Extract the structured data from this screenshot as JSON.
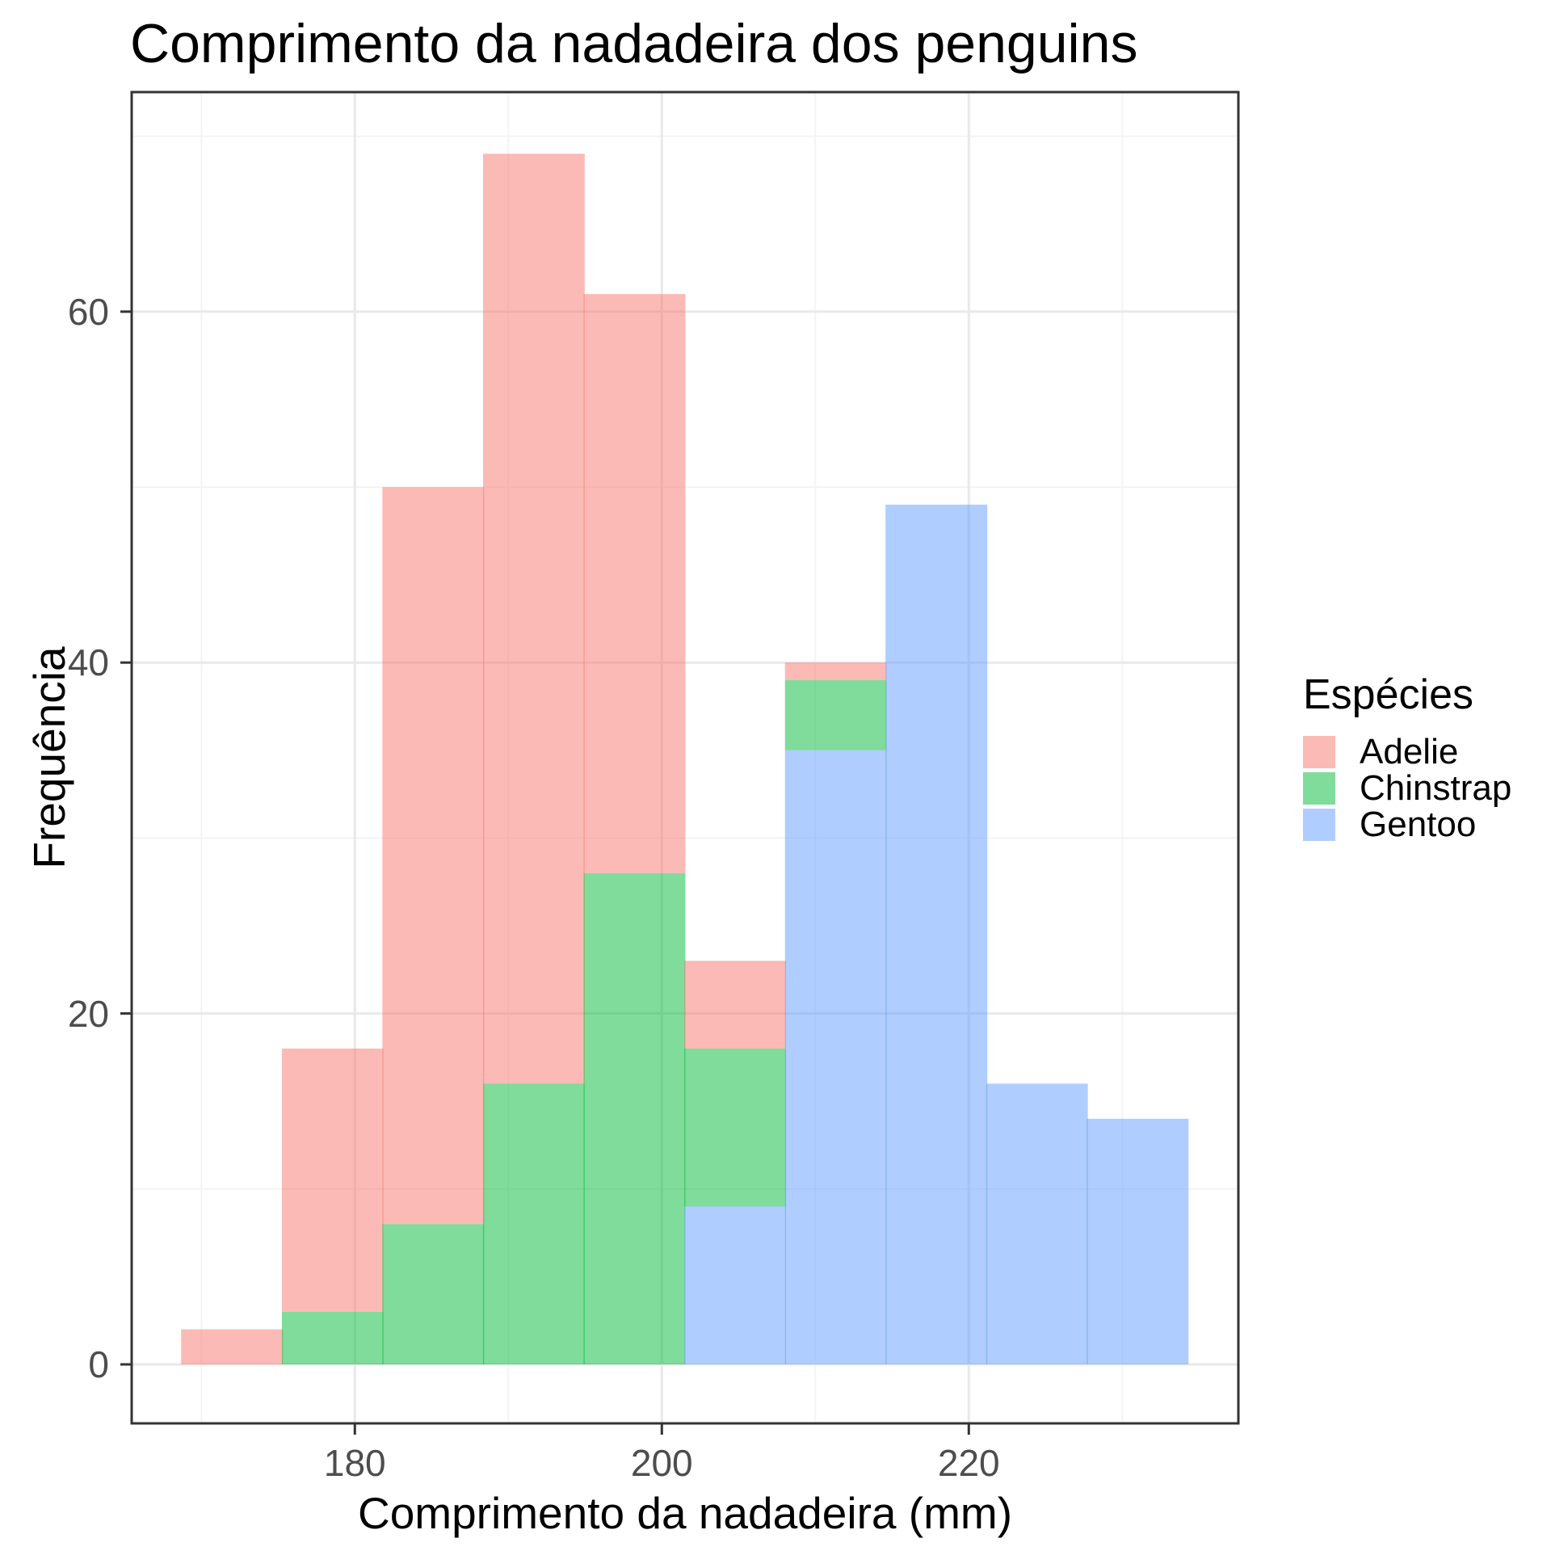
{
  "title": "Comprimento da nadadeira dos penguins",
  "x_axis": {
    "label": "Comprimento da nadadeira (mm)",
    "tick_labels": [
      "180",
      "200",
      "220"
    ],
    "tick_values_mm": [
      180,
      200,
      220
    ],
    "minor_gridlines_mm": [
      170,
      190,
      210,
      230
    ]
  },
  "y_axis": {
    "label": "Frequência",
    "tick_labels": [
      "0",
      "20",
      "40",
      "60"
    ],
    "tick_values": [
      0,
      20,
      40,
      60
    ],
    "minor_gridlines": [
      10,
      30,
      50,
      70
    ]
  },
  "legend": {
    "title": "Espécies",
    "fill_alpha": 0.5,
    "items": [
      {
        "label": "Adelie",
        "color": "#F8766D"
      },
      {
        "label": "Chinstrap",
        "color": "#00BA38"
      },
      {
        "label": "Gentoo",
        "color": "#619CFF"
      }
    ]
  },
  "chart_data": {
    "type": "bar",
    "subtype": "stacked-histogram",
    "title": "Comprimento da nadadeira dos penguins",
    "xlabel": "Comprimento da nadadeira (mm)",
    "ylabel": "Frequência",
    "bin_edges_mm": [
      168.72,
      175.28,
      181.83,
      188.39,
      194.94,
      201.5,
      208.06,
      214.61,
      221.17,
      227.72,
      234.28
    ],
    "series": [
      {
        "name": "Adelie",
        "color": "#F8766D",
        "values": [
          2,
          15,
          42,
          53,
          33,
          5,
          1,
          0,
          0,
          0
        ]
      },
      {
        "name": "Chinstrap",
        "color": "#00BA38",
        "values": [
          0,
          3,
          8,
          16,
          28,
          9,
          4,
          0,
          0,
          0
        ]
      },
      {
        "name": "Gentoo",
        "color": "#619CFF",
        "values": [
          0,
          0,
          0,
          0,
          0,
          9,
          35,
          49,
          16,
          14
        ]
      }
    ],
    "stack_order_bottom_to_top": [
      "Gentoo",
      "Chinstrap",
      "Adelie"
    ],
    "bin_totals": [
      2,
      18,
      50,
      69,
      61,
      23,
      40,
      49,
      16,
      14
    ],
    "ylim": [
      0,
      72
    ],
    "x_range_mm": [
      165.5,
      237.5
    ],
    "grid": true,
    "legend_position": "right",
    "colors": {
      "panel_border": "#333333",
      "grid_major": "#e9e9e9",
      "grid_minor": "#f4f4f4",
      "tick_mark": "#333333",
      "tick_text": "#4d4d4d"
    }
  }
}
